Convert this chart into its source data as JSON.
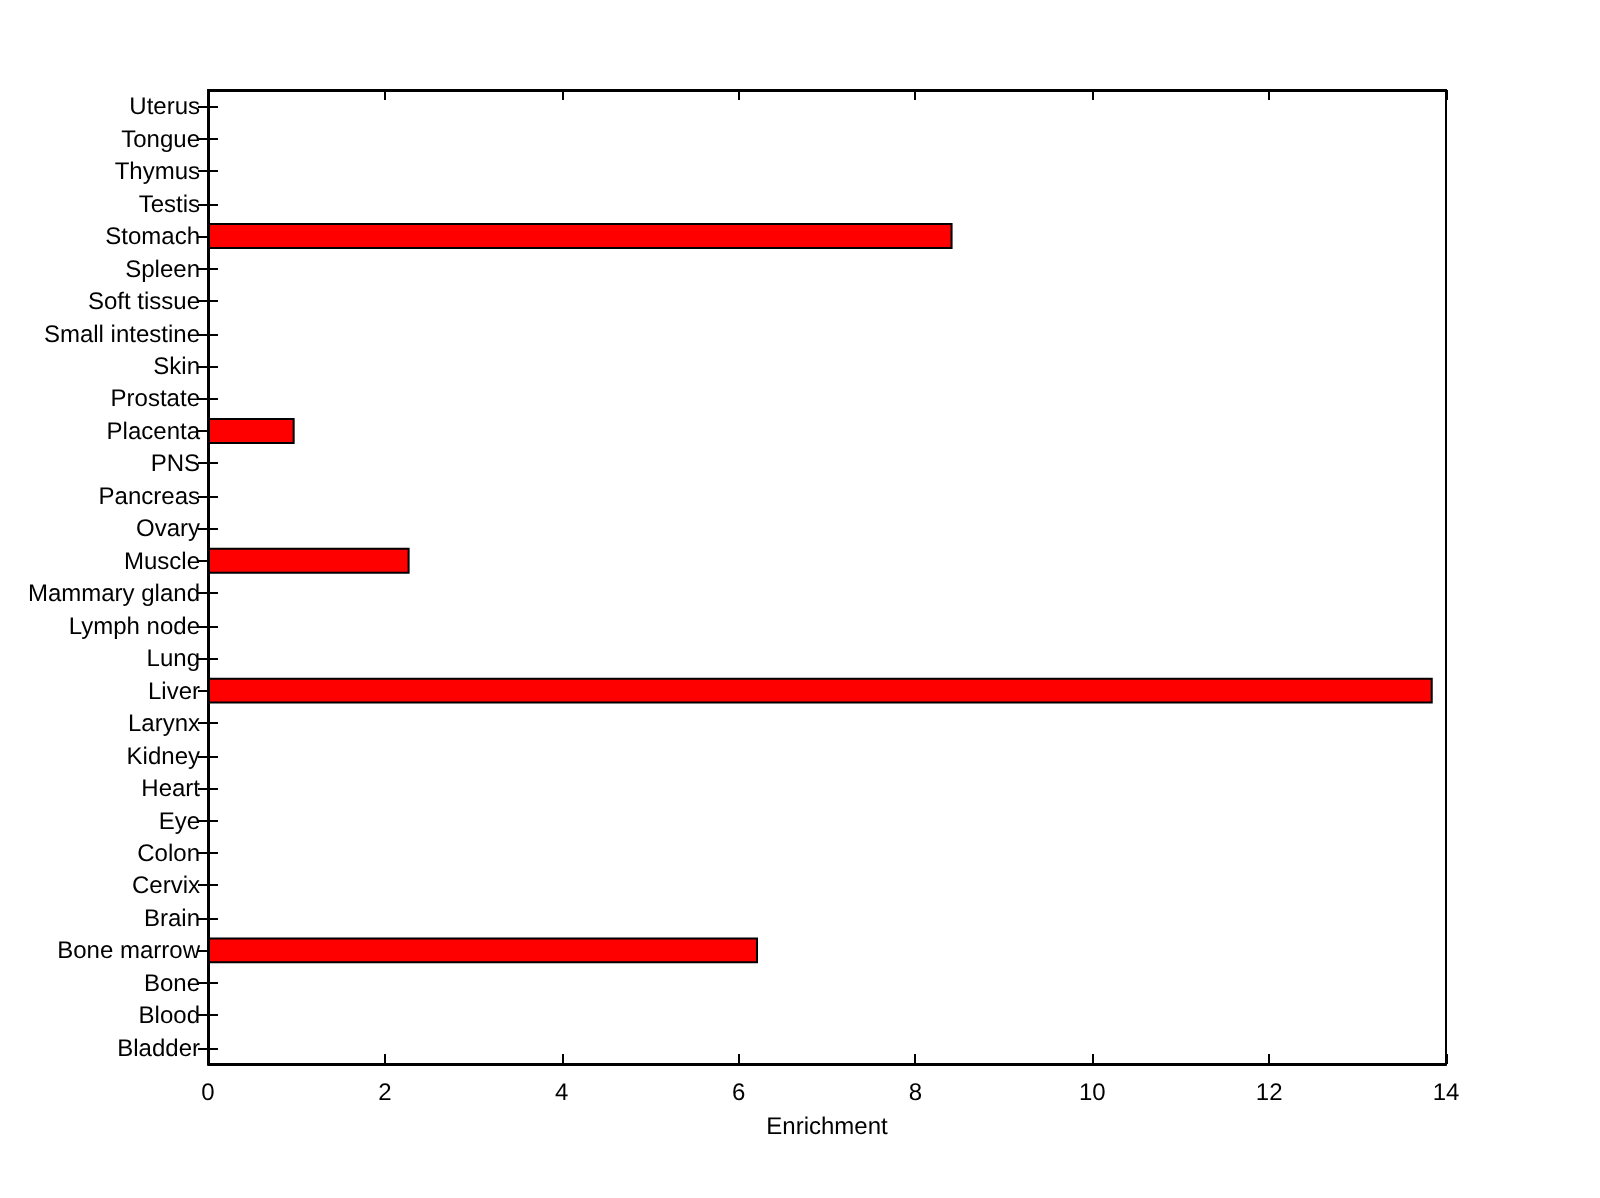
{
  "chart_data": {
    "type": "bar",
    "orientation": "horizontal",
    "xlabel": "Enrichment",
    "categories": [
      "Uterus",
      "Tongue",
      "Thymus",
      "Testis",
      "Stomach",
      "Spleen",
      "Soft tissue",
      "Small intestine",
      "Skin",
      "Prostate",
      "Placenta",
      "PNS",
      "Pancreas",
      "Ovary",
      "Muscle",
      "Mammary gland",
      "Lymph node",
      "Lung",
      "Liver",
      "Larynx",
      "Kidney",
      "Heart",
      "Eye",
      "Colon",
      "Cervix",
      "Brain",
      "Bone marrow",
      "Bone",
      "Blood",
      "Bladder"
    ],
    "values": [
      0,
      0,
      0,
      0,
      8.42,
      0,
      0,
      0,
      0,
      0,
      0.98,
      0,
      0,
      0,
      2.28,
      0,
      0,
      0,
      13.85,
      0,
      0,
      0,
      0,
      0,
      0,
      0,
      6.22,
      0,
      0,
      0
    ],
    "color": "#ff0000",
    "xlim": [
      0,
      14
    ],
    "xticks": [
      0,
      2,
      4,
      6,
      8,
      10,
      12,
      14
    ],
    "grid": false
  }
}
